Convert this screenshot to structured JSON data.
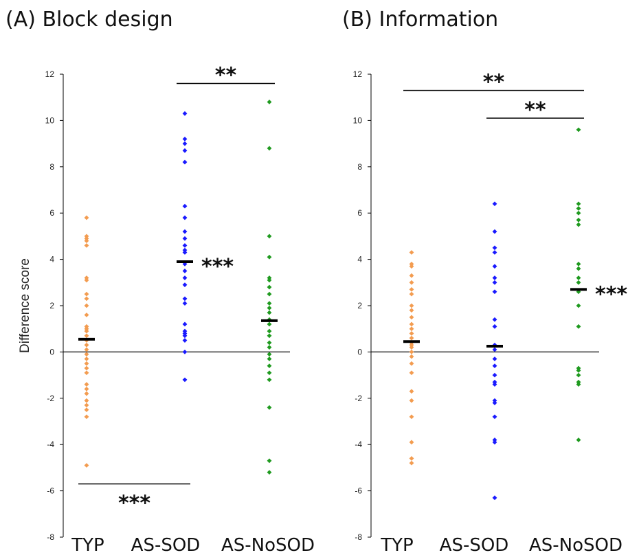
{
  "chart_data": [
    {
      "type": "scatter",
      "title": "(A) Block design",
      "ylabel": "Difference score",
      "ylim": [
        -8,
        12
      ],
      "yticks": [
        -8,
        -6,
        -4,
        -2,
        0,
        2,
        4,
        6,
        8,
        10,
        12
      ],
      "categories": [
        "TYP",
        "AS-SOD",
        "AS-NoSOD"
      ],
      "series": [
        {
          "category": "TYP",
          "color": "#f39c50",
          "mean": 0.55,
          "significance": "",
          "values": [
            5.8,
            5.0,
            4.9,
            4.8,
            4.6,
            3.2,
            3.1,
            2.5,
            2.3,
            2.0,
            1.6,
            1.1,
            1.0,
            0.9,
            0.7,
            0.5,
            0.3,
            0.1,
            -0.1,
            -0.3,
            -0.5,
            -0.7,
            -0.9,
            -1.4,
            -1.6,
            -1.8,
            -2.1,
            -2.3,
            -2.5,
            -2.8,
            -4.9
          ]
        },
        {
          "category": "AS-SOD",
          "color": "#1a1aff",
          "mean": 3.9,
          "significance": "***",
          "values": [
            10.3,
            9.2,
            9.0,
            8.7,
            8.2,
            6.3,
            5.8,
            5.2,
            4.9,
            4.6,
            4.4,
            4.3,
            3.8,
            3.5,
            3.2,
            2.9,
            2.3,
            2.1,
            1.2,
            0.9,
            0.8,
            0.7,
            0.5,
            0.0,
            -1.2
          ]
        },
        {
          "category": "AS-NoSOD",
          "color": "#1f9a1f",
          "mean": 1.35,
          "significance": "",
          "values": [
            10.8,
            8.8,
            5.0,
            4.1,
            3.2,
            3.1,
            2.8,
            2.5,
            2.1,
            1.9,
            1.7,
            1.4,
            1.2,
            0.9,
            0.7,
            0.4,
            0.2,
            -0.1,
            -0.3,
            -0.6,
            -0.9,
            -1.2,
            -2.4,
            -4.7,
            -5.2
          ]
        }
      ],
      "comparisons": [
        {
          "from": "AS-SOD",
          "to": "AS-NoSOD",
          "label": "**",
          "y": 11.6
        },
        {
          "from": "TYP",
          "to": "AS-SOD",
          "label": "***",
          "y": -5.7
        }
      ]
    },
    {
      "type": "scatter",
      "title": "(B) Information",
      "ylabel": "",
      "ylim": [
        -8,
        12
      ],
      "yticks": [
        -8,
        -6,
        -4,
        -2,
        0,
        2,
        4,
        6,
        8,
        10,
        12
      ],
      "categories": [
        "TYP",
        "AS-SOD",
        "AS-NoSOD"
      ],
      "series": [
        {
          "category": "TYP",
          "color": "#f39c50",
          "mean": 0.45,
          "significance": "",
          "values": [
            4.3,
            3.8,
            3.7,
            3.3,
            3.0,
            2.7,
            2.5,
            2.0,
            1.8,
            1.5,
            1.2,
            1.0,
            0.8,
            0.6,
            0.4,
            0.3,
            0.2,
            0.0,
            -0.2,
            -0.5,
            -0.9,
            -1.7,
            -2.1,
            -2.8,
            -3.9,
            -4.6,
            -4.8
          ]
        },
        {
          "category": "AS-SOD",
          "color": "#1a1aff",
          "mean": 0.25,
          "significance": "",
          "values": [
            6.4,
            5.2,
            4.5,
            4.3,
            3.7,
            3.2,
            3.0,
            2.6,
            1.4,
            1.1,
            0.3,
            0.1,
            -0.3,
            -0.6,
            -1.0,
            -1.3,
            -1.4,
            -2.1,
            -2.2,
            -2.8,
            -3.8,
            -3.9,
            -6.3
          ]
        },
        {
          "category": "AS-NoSOD",
          "color": "#1f9a1f",
          "mean": 2.7,
          "significance": "***",
          "values": [
            9.6,
            6.4,
            6.2,
            6.0,
            5.7,
            5.5,
            3.8,
            3.6,
            3.2,
            3.0,
            2.6,
            2.0,
            1.1,
            -0.7,
            -0.8,
            -1.0,
            -1.3,
            -1.4,
            -3.8
          ]
        }
      ],
      "comparisons": [
        {
          "from": "TYP",
          "to": "AS-NoSOD",
          "label": "**",
          "y": 11.3
        },
        {
          "from": "AS-SOD",
          "to": "AS-NoSOD",
          "label": "**",
          "y": 10.1
        }
      ]
    }
  ]
}
